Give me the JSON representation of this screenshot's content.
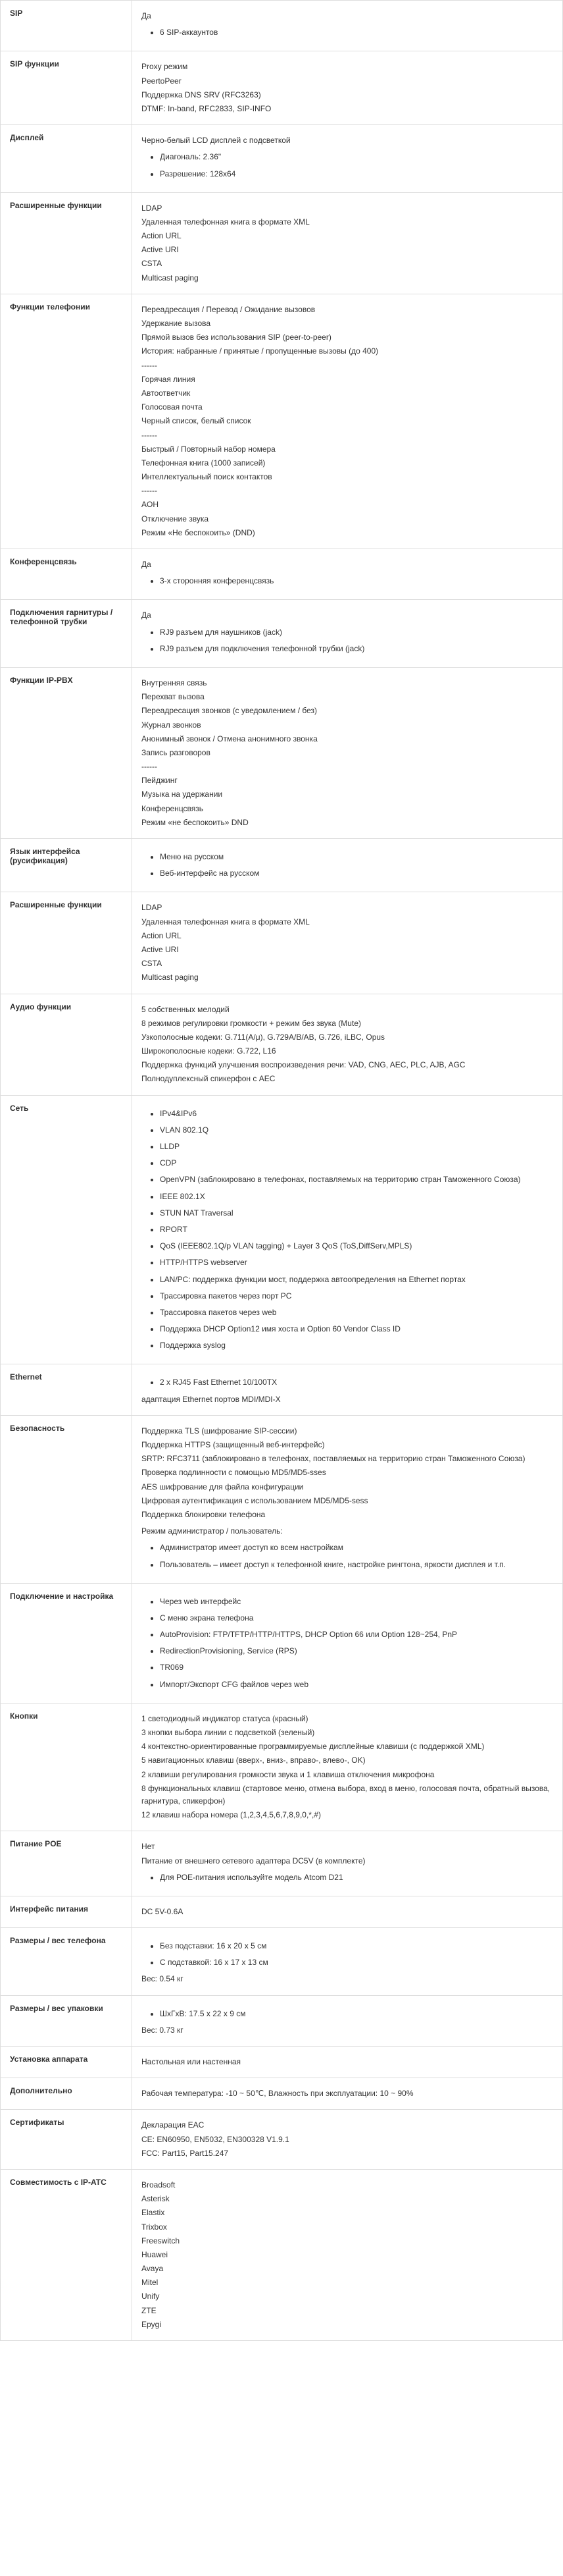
{
  "rows": [
    {
      "label": "SIP",
      "blocks": [
        {
          "type": "text",
          "text": "Да"
        },
        {
          "type": "list",
          "items": [
            "6 SIP-аккаунтов"
          ]
        }
      ]
    },
    {
      "label": "SIP функции",
      "blocks": [
        {
          "type": "text",
          "text": "Proxy режим"
        },
        {
          "type": "text",
          "text": "PeertoPeer"
        },
        {
          "type": "text",
          "text": "Поддержка DNS SRV (RFC3263)"
        },
        {
          "type": "text",
          "text": "DTMF: In-band, RFC2833, SIP-INFO"
        }
      ]
    },
    {
      "label": "Дисплей",
      "blocks": [
        {
          "type": "text",
          "text": "Черно-белый LCD дисплей с подсветкой"
        },
        {
          "type": "list",
          "items": [
            "Диагональ: 2.36\""
          ]
        },
        {
          "type": "list",
          "items": [
            "Разрешение: 128x64"
          ]
        }
      ]
    },
    {
      "label": "Расширенные функции",
      "blocks": [
        {
          "type": "text",
          "text": "LDAP"
        },
        {
          "type": "text",
          "text": "Удаленная телефонная книга в формате XML"
        },
        {
          "type": "text",
          "text": "Action URL"
        },
        {
          "type": "text",
          "text": "Active URI"
        },
        {
          "type": "text",
          "text": "CSTA"
        },
        {
          "type": "text",
          "text": "Multicast paging"
        }
      ]
    },
    {
      "label": "Функции телефонии",
      "blocks": [
        {
          "type": "text",
          "text": "Переадресация / Перевод / Ожидание вызовов"
        },
        {
          "type": "text",
          "text": "Удержание вызова"
        },
        {
          "type": "text",
          "text": "Прямой вызов без использования SIP (peer-to-peer)"
        },
        {
          "type": "text",
          "text": "История: набранные / принятые / пропущенные вызовы (до 400)"
        },
        {
          "type": "text",
          "text": "------"
        },
        {
          "type": "text",
          "text": "Горячая линия"
        },
        {
          "type": "text",
          "text": "Автоответчик"
        },
        {
          "type": "text",
          "text": "Голосовая почта"
        },
        {
          "type": "text",
          "text": "Черный список, белый список"
        },
        {
          "type": "text",
          "text": "------"
        },
        {
          "type": "text",
          "text": "Быстрый / Повторный набор номера"
        },
        {
          "type": "text",
          "text": "Телефонная книга (1000 записей)"
        },
        {
          "type": "text",
          "text": "Интеллектуальный поиск контактов"
        },
        {
          "type": "text",
          "text": "------"
        },
        {
          "type": "text",
          "text": "AOH"
        },
        {
          "type": "text",
          "text": "Отключение звука"
        },
        {
          "type": "text",
          "text": "Режим «Не беспокоить» (DND)"
        }
      ]
    },
    {
      "label": "Конференцсвязь",
      "blocks": [
        {
          "type": "text",
          "text": "Да"
        },
        {
          "type": "list",
          "items": [
            "3-х сторонняя конференцсвязь"
          ]
        }
      ]
    },
    {
      "label": "Подключения гарнитуры / телефонной трубки",
      "blocks": [
        {
          "type": "text",
          "text": "Да"
        },
        {
          "type": "list",
          "items": [
            "RJ9 разъем для наушников (jack)"
          ]
        },
        {
          "type": "list",
          "items": [
            "RJ9 разъем для подключения телефонной трубки (jack)"
          ]
        }
      ]
    },
    {
      "label": "Функции IP-PBX",
      "blocks": [
        {
          "type": "text",
          "text": "Внутренняя связь"
        },
        {
          "type": "text",
          "text": "Перехват вызова"
        },
        {
          "type": "text",
          "text": "Переадресация звонков (с уведомлением / без)"
        },
        {
          "type": "text",
          "text": "Журнал звонков"
        },
        {
          "type": "text",
          "text": "Анонимный звонок / Отмена анонимного звонка"
        },
        {
          "type": "text",
          "text": "Запись разговоров"
        },
        {
          "type": "text",
          "text": "------"
        },
        {
          "type": "text",
          "text": "Пейджинг"
        },
        {
          "type": "text",
          "text": "Музыка на удержании"
        },
        {
          "type": "text",
          "text": "Конференцсвязь"
        },
        {
          "type": "text",
          "text": "Режим «не беспокоить» DND"
        }
      ]
    },
    {
      "label": "Язык интерфейса (русификация)",
      "blocks": [
        {
          "type": "list",
          "items": [
            "Меню на русском"
          ]
        },
        {
          "type": "list",
          "items": [
            "Веб-интерфейс на русском"
          ]
        }
      ]
    },
    {
      "label": "Расширенные функции",
      "blocks": [
        {
          "type": "text",
          "text": "LDAP"
        },
        {
          "type": "text",
          "text": "Удаленная телефонная книга в формате XML"
        },
        {
          "type": "text",
          "text": "Action URL"
        },
        {
          "type": "text",
          "text": "Active URI"
        },
        {
          "type": "text",
          "text": "CSTA"
        },
        {
          "type": "text",
          "text": "Multicast paging"
        }
      ]
    },
    {
      "label": "Аудио функции",
      "blocks": [
        {
          "type": "text",
          "text": "5 собственных мелодий"
        },
        {
          "type": "text",
          "text": "8 режимов регулировки громкости + режим без звука (Mute)"
        },
        {
          "type": "text",
          "text": "Узкополосные кодеки: G.711(A/μ), G.729A/B/AB, G.726, iLBC, Opus"
        },
        {
          "type": "text",
          "text": "Широкополосные кодеки: G.722, L16"
        },
        {
          "type": "text",
          "text": "Поддержка функций улучшения воспроизведения речи: VAD, CNG, AEC, PLC, AJB, AGC"
        },
        {
          "type": "text",
          "text": "Полнодуплексный спикерфон с AEC"
        }
      ]
    },
    {
      "label": "Сеть",
      "blocks": [
        {
          "type": "list",
          "items": [
            "IPv4&IPv6"
          ]
        },
        {
          "type": "list",
          "items": [
            "VLAN 802.1Q"
          ]
        },
        {
          "type": "list",
          "items": [
            "LLDP"
          ]
        },
        {
          "type": "list",
          "items": [
            "CDP"
          ]
        },
        {
          "type": "list",
          "items": [
            "OpenVPN (заблокировано в телефонах, поставляемых на территорию стран Таможенного Союза)"
          ]
        },
        {
          "type": "list",
          "items": [
            "IEEE 802.1X"
          ]
        },
        {
          "type": "list",
          "items": [
            "STUN NAT Traversal"
          ]
        },
        {
          "type": "list",
          "items": [
            "RPORT"
          ]
        },
        {
          "type": "list",
          "items": [
            "QoS (IEEE802.1Q/p VLAN tagging) + Layer 3 QoS (ToS,DiffServ,MPLS)"
          ]
        },
        {
          "type": "list",
          "items": [
            "HTTP/HTTPS webserver"
          ]
        },
        {
          "type": "list",
          "items": [
            "LAN/PC: поддержка функции мост, поддержка автоопределения на Ethernet портах"
          ]
        },
        {
          "type": "list",
          "items": [
            "Трассировка пакетов через порт PC"
          ]
        },
        {
          "type": "list",
          "items": [
            "Трассировка пакетов через web"
          ]
        },
        {
          "type": "list",
          "items": [
            "Поддержка DHCP Option12 имя хоста и Option 60 Vendor Class ID"
          ]
        },
        {
          "type": "list",
          "items": [
            "Поддержка syslog"
          ]
        }
      ]
    },
    {
      "label": "Ethernet",
      "blocks": [
        {
          "type": "list",
          "items": [
            "2 x RJ45 Fast Ethernet 10/100TX"
          ]
        },
        {
          "type": "text",
          "text": "адаптация Ethernet портов MDI/MDI-X"
        }
      ]
    },
    {
      "label": "Безопасность",
      "blocks": [
        {
          "type": "text",
          "text": "Поддержка TLS (шифрование SIP-сессии)"
        },
        {
          "type": "text",
          "text": "Поддержка HTTPS (защищенный веб-интерфейс)"
        },
        {
          "type": "text",
          "text": "SRTP: RFC3711 (заблокировано в телефонах, поставляемых на территорию стран Таможенного Союза)"
        },
        {
          "type": "text",
          "text": "Проверка подлинности с помощью MD5/MD5-sses"
        },
        {
          "type": "text",
          "text": "AES шифрование для файла конфигурации"
        },
        {
          "type": "text",
          "text": "Цифровая аутентификация с использованием MD5/MD5-sess"
        },
        {
          "type": "text",
          "text": "Поддержка блокировки телефона"
        },
        {
          "type": "sep"
        },
        {
          "type": "text",
          "text": "Режим администратор / пользователь:"
        },
        {
          "type": "list",
          "items": [
            "Администратор имеет доступ ко всем настройкам"
          ]
        },
        {
          "type": "list",
          "items": [
            "Пользователь – имеет доступ к телефонной книге, настройке рингтона, яркости дисплея и т.п."
          ]
        }
      ]
    },
    {
      "label": "Подключение и настройка",
      "blocks": [
        {
          "type": "list",
          "items": [
            "Через web интерфейс"
          ]
        },
        {
          "type": "list",
          "items": [
            "С меню экрана телефона"
          ]
        },
        {
          "type": "list",
          "items": [
            "AutoProvision: FTP/TFTP/HTTP/HTTPS, DHCP Option 66 или Option 128~254, PnP"
          ]
        },
        {
          "type": "list",
          "items": [
            "RedirectionProvisioning, Service (RPS)"
          ]
        },
        {
          "type": "list",
          "items": [
            "TR069"
          ]
        },
        {
          "type": "list",
          "items": [
            "Импорт/Экспорт CFG файлов через web"
          ]
        }
      ]
    },
    {
      "label": "Кнопки",
      "blocks": [
        {
          "type": "text",
          "text": "1 светодиодный индикатор статуса (красный)"
        },
        {
          "type": "text",
          "text": "3 кнопки выбора линии с подсветкой (зеленый)"
        },
        {
          "type": "text",
          "text": "4 контекстно-ориентированные программируемые дисплейные клавиши (с поддержкой XML)"
        },
        {
          "type": "text",
          "text": "5 навигационных клавиш (вверх-, вниз-, вправо-, влево-, OK)"
        },
        {
          "type": "text",
          "text": "2 клавиши регулирования громкости звука и 1 клавиша отключения микрофона"
        },
        {
          "type": "text",
          "text": "8 функциональных клавиш (стартовое меню, отмена выбора, вход в меню, голосовая почта, обратный вызова, гарнитура, спикерфон)"
        },
        {
          "type": "text",
          "text": "12 клавиш набора номера (1,2,3,4,5,6,7,8,9,0,*,#)"
        }
      ]
    },
    {
      "label": "Питание POE",
      "blocks": [
        {
          "type": "text",
          "text": "Нет"
        },
        {
          "type": "text",
          "text": "Питание от внешнего сетевого адаптера DC5V (в комплекте)"
        },
        {
          "type": "list",
          "items": [
            "Для РОЕ-питания используйте модель Atcom D21"
          ]
        }
      ]
    },
    {
      "label": "Интерфейс питания",
      "blocks": [
        {
          "type": "text",
          "text": "DC 5V-0.6A"
        }
      ]
    },
    {
      "label": "Размеры / вес телефона",
      "blocks": [
        {
          "type": "list",
          "items": [
            "Без подставки: 16 x 20 x 5 см"
          ]
        },
        {
          "type": "list",
          "items": [
            "С подставкой: 16 x 17 x 13 см"
          ]
        },
        {
          "type": "text",
          "text": "Вес: 0.54 кг"
        }
      ]
    },
    {
      "label": "Размеры / вес упаковки",
      "blocks": [
        {
          "type": "list",
          "items": [
            "ШхГхВ: 17.5 x 22 x 9 см"
          ]
        },
        {
          "type": "text",
          "text": "Вес: 0.73 кг"
        }
      ]
    },
    {
      "label": "Установка аппарата",
      "blocks": [
        {
          "type": "text",
          "text": "Настольная или настенная"
        }
      ]
    },
    {
      "label": "Дополнительно",
      "blocks": [
        {
          "type": "text",
          "text": "Рабочая температура: -10 ~ 50℃, Влажность при эксплуатации: 10 ~ 90%"
        }
      ]
    },
    {
      "label": "Сертификаты",
      "blocks": [
        {
          "type": "text",
          "text": "Декларация EAC"
        },
        {
          "type": "text",
          "text": "CE: EN60950, EN5032, EN300328 V1.9.1"
        },
        {
          "type": "text",
          "text": "FCC: Part15, Part15.247"
        }
      ]
    },
    {
      "label": "Совместимость с IP-ATC",
      "blocks": [
        {
          "type": "text",
          "text": "Broadsoft"
        },
        {
          "type": "text",
          "text": "Asterisk"
        },
        {
          "type": "text",
          "text": "Elastix"
        },
        {
          "type": "text",
          "text": "Trixbox"
        },
        {
          "type": "text",
          "text": "Freeswitch"
        },
        {
          "type": "text",
          "text": "Huawei"
        },
        {
          "type": "text",
          "text": "Avaya"
        },
        {
          "type": "text",
          "text": "Mitel"
        },
        {
          "type": "text",
          "text": "Unify"
        },
        {
          "type": "text",
          "text": "ZTE"
        },
        {
          "type": "text",
          "text": "Epygi"
        }
      ]
    }
  ]
}
